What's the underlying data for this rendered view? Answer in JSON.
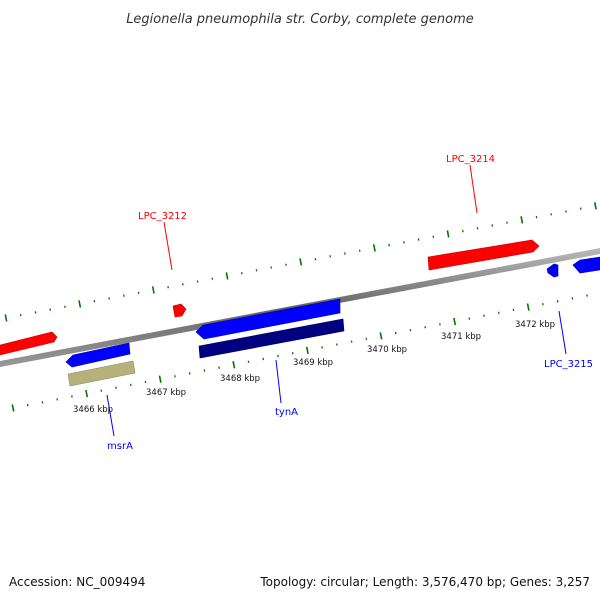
{
  "title": "Legionella pneumophila str. Corby, complete genome",
  "accession": "Accession: NC_009494",
  "topology": "Topology: circular; Length: 3,576,470 bp; Genes: 3,257",
  "colors": {
    "forward_strand": "#0000ff",
    "reverse_strand": "#ff0000",
    "cds_dark": "#000080",
    "rna_khaki": "#b5b17a",
    "backbone": "#888888",
    "tick_green": "#007700"
  },
  "tick_labels": [
    "3466 kbp",
    "3467 kbp",
    "3468 kbp",
    "3469 kbp",
    "3470 kbp",
    "3471 kbp",
    "3472 kbp"
  ],
  "gene_labels": {
    "lpc_3212": "LPC_3212",
    "lpc_3214": "LPC_3214",
    "lpc_3215": "LPC_3215",
    "msra": "msrA",
    "tyna": "tynA"
  }
}
